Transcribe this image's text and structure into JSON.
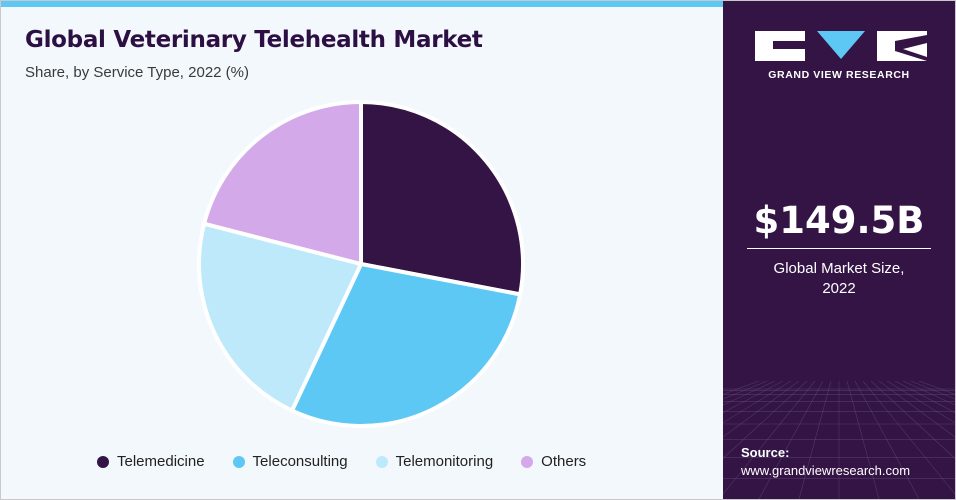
{
  "header": {
    "title": "Global Veterinary Telehealth Market",
    "subtitle": "Share, by Service Type, 2022 (%)"
  },
  "chart_data": {
    "type": "pie",
    "title": "Global Veterinary Telehealth Market",
    "subtitle": "Share, by Service Type, 2022 (%)",
    "categories": [
      "Telemedicine",
      "Teleconsulting",
      "Telemonitoring",
      "Others"
    ],
    "values": [
      28,
      29,
      22,
      21
    ],
    "colors": [
      "#341445",
      "#5ec8f5",
      "#bde9fb",
      "#d3a9ea"
    ],
    "legend_position": "bottom"
  },
  "side_panel": {
    "logo_text": "GRAND VIEW RESEARCH",
    "market_size": "$149.5B",
    "market_size_label": "Global Market Size,",
    "market_size_year": "2022",
    "source_label": "Source:",
    "source_url": "www.grandviewresearch.com",
    "background_color": "#341445"
  }
}
